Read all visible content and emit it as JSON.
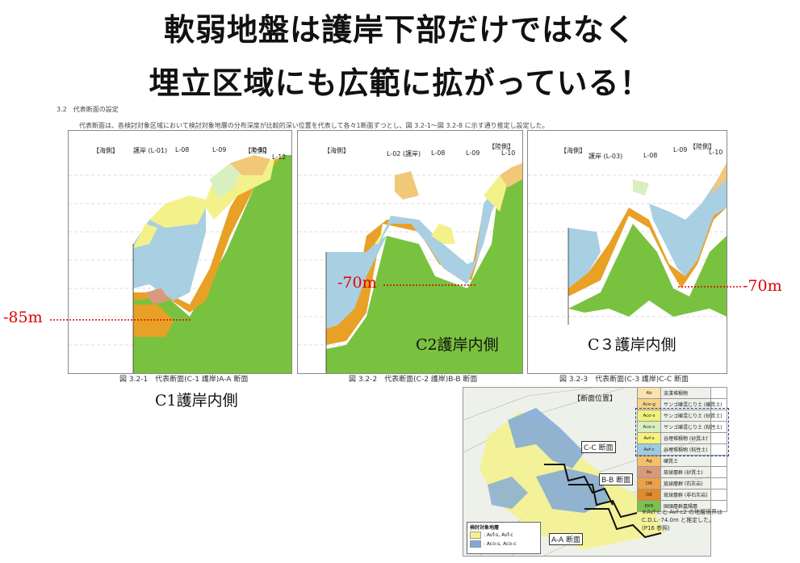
{
  "headline": {
    "line1": "軟弱地盤は護岸下部だけではなく",
    "line2": "埋立区域にも広範に拡がっている！"
  },
  "document": {
    "section": "3.2　代表断面の設定",
    "body": "代表断面は、各検討対象区域において検討対象地層の分布深度が比較的深い位置を代表して各々1断面ずつとし、図 3.2-1～図 3.2-8 に示す通り推定し設定した。"
  },
  "panels": [
    {
      "sea_label": "【海側】",
      "land_label": "【陸側】",
      "borings": [
        "護岸 (L-01)",
        "L-08",
        "L-09",
        "L-10",
        "L-12"
      ],
      "caption": "図 3.2-1　代表断面(C-1 護岸)A-A 断面",
      "label": "C1護岸内側",
      "depth": "-85m"
    },
    {
      "sea_label": "【海側】",
      "land_label": "【陸側】",
      "borings": [
        "L-02 (護岸)",
        "L-08",
        "L-09",
        "L-10"
      ],
      "caption": "図 3.2-2　代表断面(C-2 護岸)B-B 断面",
      "label": "C2護岸内側",
      "depth": "-70m"
    },
    {
      "sea_label": "【海側】",
      "land_label": "【陸側】",
      "borings": [
        "護岸 (L-03)",
        "L-08",
        "L-09",
        "L-10"
      ],
      "caption": "図 3.2-3　代表断面(C-3 護岸)C-C 断面",
      "label": "C３護岸内側",
      "depth": "-70m"
    }
  ],
  "map": {
    "title": "【断面位置】",
    "sections": [
      "C-C 断面",
      "B-B 断面",
      "A-A 断面"
    ],
    "inset_title": "検討対象地層",
    "inset_items": [
      ": Avf-s, Avf-c",
      ": Aco-s, Aco-c"
    ]
  },
  "legend": [
    {
      "code": "Ab",
      "text": "浚渫堆積物",
      "color": "#fbe3b0"
    },
    {
      "code": "Aco-g",
      "text": "サンゴ礫混じり土 (礫質土)",
      "color": "#f6d48a"
    },
    {
      "code": "Aco-s",
      "text": "サンゴ礫混じり土 (砂質土)",
      "color": "#f0f07a"
    },
    {
      "code": "Aco-c",
      "text": "サンゴ礫混じり土 (粘性土)",
      "color": "#d8efc0"
    },
    {
      "code": "Avf-s",
      "text": "谷埋堆積物 (砂質土)",
      "color": "#f6f27a"
    },
    {
      "code": "Avf-c",
      "text": "谷埋堆積物 (粘性土)",
      "color": "#9dcbe0"
    },
    {
      "code": "Ag",
      "text": "礫質土",
      "color": "#f3c06a"
    },
    {
      "code": "As",
      "text": "琉球層群 (砂質土)",
      "color": "#d99a7a"
    },
    {
      "code": "DR",
      "text": "琉球層群 (石灰岩)",
      "color": "#e9a24a"
    },
    {
      "code": "DK",
      "text": "琉球層群 (非石灰岩)",
      "color": "#e08a2a"
    },
    {
      "code": "EKR",
      "text": "国頭層群嘉陽層",
      "color": "#7dc24a"
    }
  ],
  "note": "※Avf-c と Avf-c2 の地層境界は C.D.L.-74.0m と推定した。(P16 参照)",
  "colors": {
    "red": "#e00000",
    "green": "#79c23f",
    "orange": "#e8a126",
    "blue": "#a9cfe2",
    "yellow": "#f3f28a"
  }
}
